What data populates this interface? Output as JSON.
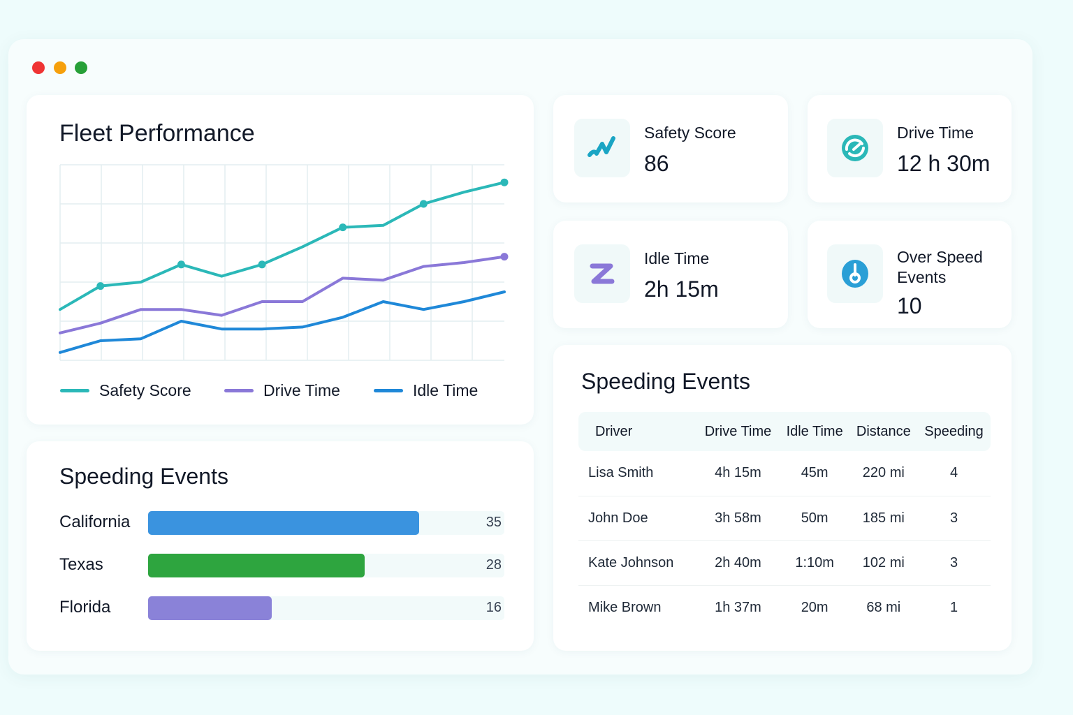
{
  "window": {
    "controls": [
      {
        "name": "close",
        "color": "#ef3434"
      },
      {
        "name": "minimize",
        "color": "#f6a00c"
      },
      {
        "name": "maximize",
        "color": "#27a038"
      }
    ]
  },
  "fleet_performance": {
    "title": "Fleet Performance"
  },
  "chart_data": {
    "type": "line",
    "title": "Fleet Performance",
    "x": [
      0,
      1,
      2,
      3,
      4,
      5,
      6,
      7,
      8,
      9,
      10,
      11
    ],
    "ylim": [
      0,
      100
    ],
    "grid": true,
    "legend": "bottom",
    "series": [
      {
        "name": "Safety Score",
        "color": "#2bb8b8",
        "values": [
          26,
          38,
          40,
          49,
          43,
          49,
          58,
          68,
          69,
          80,
          86,
          91
        ],
        "markers": [
          1,
          3,
          5,
          7,
          9,
          11
        ]
      },
      {
        "name": "Drive Time",
        "color": "#8a78d8",
        "values": [
          14,
          19,
          26,
          26,
          23,
          30,
          30,
          42,
          41,
          48,
          50,
          53
        ],
        "markers": [
          11
        ]
      },
      {
        "name": "Idle Time",
        "color": "#1f88d8",
        "values": [
          4,
          10,
          11,
          20,
          16,
          16,
          17,
          22,
          30,
          26,
          30,
          35
        ],
        "markers": []
      }
    ]
  },
  "kpis": [
    {
      "label": "Safety Score",
      "value": "86",
      "icon": "trend-line-icon",
      "color": "#1aa5c4"
    },
    {
      "label": "Drive Time",
      "value": "12 h 30m",
      "icon": "gauge-icon",
      "color": "#2bb8b8"
    },
    {
      "label": "Idle Time",
      "value": "2h 15m",
      "icon": "sleep-z-icon",
      "color": "#8a78d8"
    },
    {
      "label": "Over Speed Events",
      "value": "10",
      "icon": "speed-dial-icon",
      "color": "#2a9fd6"
    }
  ],
  "speeding_bars": {
    "title": "Speeding Events",
    "max": 46,
    "items": [
      {
        "label": "California",
        "value": 35,
        "display": "35",
        "color": "#3a93df"
      },
      {
        "label": "Texas",
        "value": 28,
        "display": "28",
        "color": "#2ea53f"
      },
      {
        "label": "Florida",
        "value": 16,
        "display": "16",
        "color": "#8a82d8"
      }
    ]
  },
  "speeding_table": {
    "title": "Speeding Events",
    "columns": [
      "Driver",
      "Drive Time",
      "Idle Time",
      "Distance",
      "Speeding"
    ],
    "rows": [
      [
        "Lisa Smith",
        "4h 15m",
        "45m",
        "220 mi",
        "4"
      ],
      [
        "John Doe",
        "3h 58m",
        "50m",
        "185 mi",
        "3"
      ],
      [
        "Kate Johnson",
        "2h 40m",
        "1:10m",
        "102 mi",
        "3"
      ],
      [
        "Mike Brown",
        "1h 37m",
        "20m",
        "68 mi",
        "1"
      ]
    ]
  }
}
